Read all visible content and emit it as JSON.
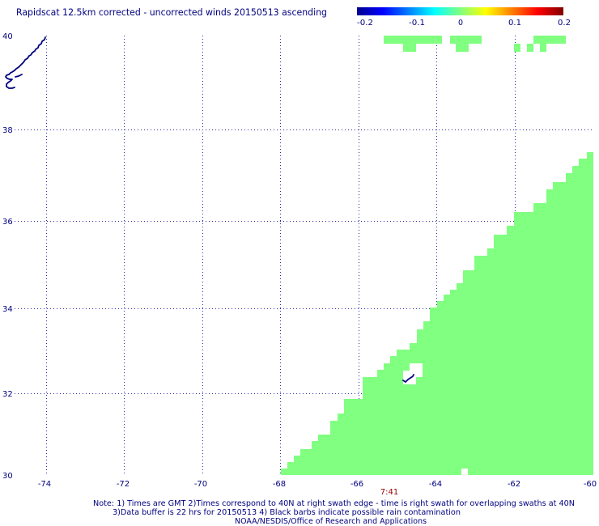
{
  "title": "Rapidscat 12.5km corrected - uncorrected winds 20150513 ascending",
  "colorbar": {
    "ticks": [
      "-0.2",
      "-0.1",
      "0",
      "0.1",
      "0.2"
    ],
    "range": [
      -0.2,
      0.2
    ],
    "colors": [
      "#00008F",
      "#0000FF",
      "#00FFFF",
      "#80FF80",
      "#FFFF00",
      "#FF0000",
      "#800000"
    ]
  },
  "map": {
    "lon_labels": [
      "-74",
      "-72",
      "-70",
      "-68",
      "-66",
      "-64",
      "-62",
      "-60"
    ],
    "lat_labels": [
      "40",
      "38",
      "36",
      "34",
      "32",
      "30"
    ],
    "lon_range": [
      -75,
      -60
    ],
    "lat_range": [
      30,
      40
    ],
    "swath_time": "7:41",
    "swath_value": 0,
    "swath_color": "#80FF80",
    "coastline_color": "#000080",
    "grid_color": "#2A2AA8"
  },
  "notes": [
    "Note: 1) Times are GMT 2)Times correspond to 40N at right swath edge - time is right swath for overlapping swaths at 40N",
    "3)Data buffer is 22 hrs for 20150513 4) Black barbs indicate possible rain contamination",
    "NOAA/NESDIS/Office of Research and Applications"
  ],
  "colors": {
    "text": "#000080",
    "time_label": "#990000",
    "background": "#FFFFFF"
  }
}
